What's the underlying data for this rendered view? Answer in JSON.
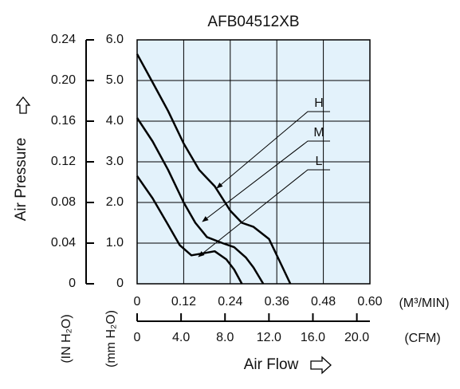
{
  "chart_data": {
    "type": "line",
    "title": "AFB04512XB",
    "y_label": "Air Pressure",
    "y_unit": "(mm H₂O)",
    "y2_unit": "(IN H₂O)",
    "x_label": "Air Flow",
    "x_unit": "(M³/MIN)",
    "x2_unit": "(CFM)",
    "xlim": [
      0,
      0.6
    ],
    "xticks": [
      0,
      0.12,
      0.24,
      0.36,
      0.48,
      {
        "value": 0.6,
        "label": "0.60"
      }
    ],
    "x2lim": [
      0,
      21.19
    ],
    "x2ticks": [
      0,
      {
        "value": 4,
        "label": "4.0"
      },
      {
        "value": 8,
        "label": "8.0"
      },
      {
        "value": 12,
        "label": "12.0"
      },
      {
        "value": 16,
        "label": "16.0"
      },
      {
        "value": 20,
        "label": "20.0"
      }
    ],
    "ylim": [
      0,
      6
    ],
    "yticks": [
      0,
      {
        "value": 1,
        "label": "1.0"
      },
      {
        "value": 2,
        "label": "2.0"
      },
      {
        "value": 3,
        "label": "3.0"
      },
      {
        "value": 4,
        "label": "4.0"
      },
      {
        "value": 5,
        "label": "5.0"
      },
      {
        "value": 6,
        "label": "6.0"
      }
    ],
    "y2lim": [
      0,
      0.24
    ],
    "y2ticks": [
      0,
      0.04,
      0.08,
      0.12,
      0.16,
      {
        "value": 0.2,
        "label": "0.20"
      },
      0.24
    ],
    "grid": true,
    "background": "#e3f2fb",
    "series": [
      {
        "name": "H",
        "color": "#000000",
        "x": [
          0,
          0.04,
          0.08,
          0.12,
          0.16,
          0.2,
          0.24,
          0.27,
          0.3,
          0.34,
          0.37,
          0.395
        ],
        "values": [
          5.65,
          4.95,
          4.25,
          3.45,
          2.8,
          2.4,
          1.8,
          1.5,
          1.4,
          1.1,
          0.5,
          0
        ]
      },
      {
        "name": "M",
        "color": "#000000",
        "x": [
          0,
          0.04,
          0.08,
          0.12,
          0.15,
          0.18,
          0.22,
          0.25,
          0.28,
          0.3,
          0.325
        ],
        "values": [
          4.08,
          3.5,
          2.8,
          2.0,
          1.5,
          1.15,
          1.0,
          0.9,
          0.65,
          0.4,
          0
        ]
      },
      {
        "name": "L",
        "color": "#000000",
        "x": [
          0,
          0.04,
          0.08,
          0.11,
          0.14,
          0.17,
          0.2,
          0.23,
          0.25,
          0.27
        ],
        "values": [
          2.65,
          2.1,
          1.45,
          0.95,
          0.7,
          0.75,
          0.8,
          0.6,
          0.35,
          0
        ]
      }
    ]
  }
}
